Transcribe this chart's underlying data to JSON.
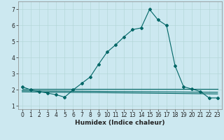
{
  "xlabel": "Humidex (Indice chaleur)",
  "bg_color": "#cce8f0",
  "line_color": "#006666",
  "xlim": [
    -0.5,
    23.5
  ],
  "ylim": [
    0.8,
    7.5
  ],
  "x_ticks": [
    0,
    1,
    2,
    3,
    4,
    5,
    6,
    7,
    8,
    9,
    10,
    11,
    12,
    13,
    14,
    15,
    16,
    17,
    18,
    19,
    20,
    21,
    22,
    23
  ],
  "y_ticks": [
    1,
    2,
    3,
    4,
    5,
    6,
    7
  ],
  "main_x": [
    0,
    1,
    2,
    3,
    4,
    5,
    6,
    7,
    8,
    9,
    10,
    11,
    12,
    13,
    14,
    15,
    16,
    17,
    18,
    19,
    20,
    21,
    22,
    23
  ],
  "main_y": [
    2.2,
    2.0,
    1.9,
    1.8,
    1.7,
    1.55,
    2.0,
    2.4,
    2.8,
    3.6,
    4.35,
    4.8,
    5.3,
    5.75,
    5.85,
    7.0,
    6.35,
    6.0,
    3.5,
    2.2,
    2.05,
    1.9,
    1.5,
    1.5
  ],
  "flat_line1_x": [
    0,
    23
  ],
  "flat_line1_y": [
    2.05,
    2.05
  ],
  "flat_line2_x": [
    0,
    23
  ],
  "flat_line2_y": [
    1.95,
    1.85
  ],
  "flat_line3_x": [
    0,
    23
  ],
  "flat_line3_y": [
    1.88,
    1.75
  ],
  "grid_color": "#b0d4d4",
  "marker": "D",
  "markersize": 2.0,
  "linewidth": 0.8,
  "tick_fontsize": 5.5,
  "xlabel_fontsize": 6.5
}
